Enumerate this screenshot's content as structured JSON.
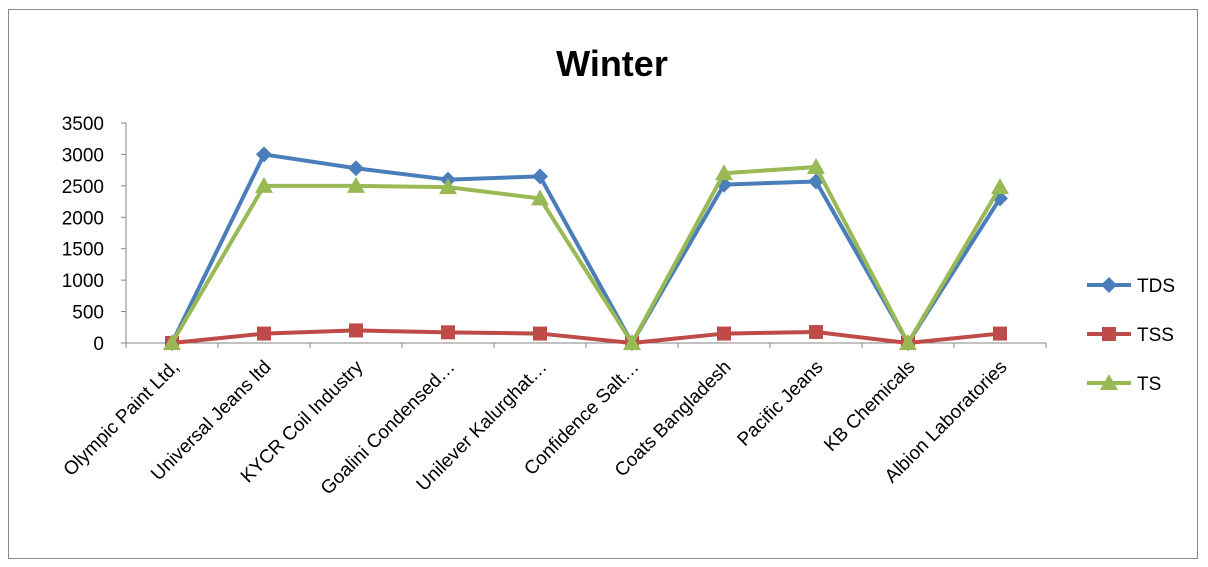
{
  "chart_data": {
    "type": "line",
    "title": "Winter",
    "xlabel": "",
    "ylabel": "",
    "ylim": [
      0,
      3500
    ],
    "yticks": [
      0,
      500,
      1000,
      1500,
      2000,
      2500,
      3000,
      3500
    ],
    "categories": [
      "Olympic Paint Ltd,",
      "Universal Jeans ltd",
      "KYCR Coil Industry",
      "Goalini Condensed…",
      "Unilever Kalurghat…",
      "Confidence Salt…",
      "Coats Bangladesh",
      "Pacific Jeans",
      "KB Chemicals",
      "Albion Laboratories"
    ],
    "series": [
      {
        "name": "TDS",
        "color": "#4a7ebb",
        "marker": "diamond",
        "values": [
          0,
          3000,
          2780,
          2600,
          2650,
          0,
          2520,
          2570,
          0,
          2300
        ]
      },
      {
        "name": "TSS",
        "color": "#be4b48",
        "marker": "square",
        "values": [
          0,
          150,
          200,
          170,
          150,
          0,
          150,
          175,
          0,
          150
        ]
      },
      {
        "name": "TS",
        "color": "#98b954",
        "marker": "triangle",
        "values": [
          0,
          2500,
          2500,
          2480,
          2300,
          0,
          2700,
          2800,
          0,
          2480
        ]
      }
    ],
    "grid": false,
    "legend_position": "right"
  }
}
